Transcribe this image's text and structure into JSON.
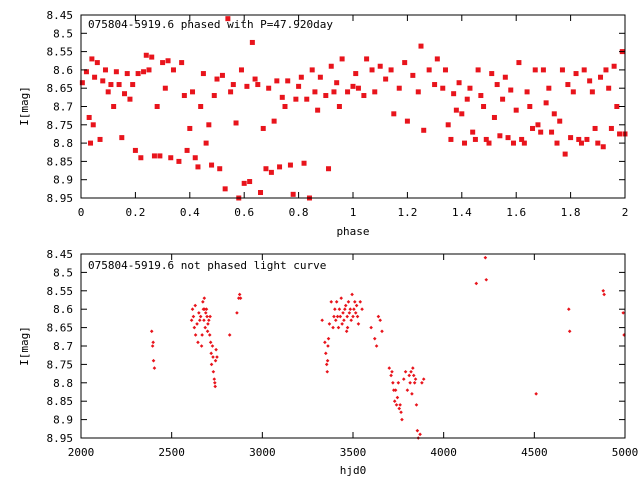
{
  "chart_data": [
    {
      "type": "scatter",
      "title": "075804-5919.6 phased with P=47.920day",
      "xlabel": "phase",
      "ylabel": "I[mag]",
      "xlim": [
        0,
        2
      ],
      "ylim": [
        8.45,
        8.95
      ],
      "y_inverted": true,
      "xticks": [
        "0",
        "0.2",
        "0.4",
        "0.6",
        "0.8",
        "1",
        "1.2",
        "1.4",
        "1.6",
        "1.8",
        "2"
      ],
      "yticks": [
        "8.45",
        "8.5",
        "8.55",
        "8.6",
        "8.65",
        "8.7",
        "8.75",
        "8.8",
        "8.85",
        "8.9",
        "8.95"
      ],
      "marker_color": "#e8141c",
      "points": [
        [
          0.005,
          8.635
        ],
        [
          0.02,
          8.605
        ],
        [
          0.03,
          8.73
        ],
        [
          0.035,
          8.8
        ],
        [
          0.04,
          8.57
        ],
        [
          0.045,
          8.75
        ],
        [
          0.05,
          8.62
        ],
        [
          0.06,
          8.58
        ],
        [
          0.07,
          8.79
        ],
        [
          0.08,
          8.63
        ],
        [
          0.09,
          8.6
        ],
        [
          0.1,
          8.66
        ],
        [
          0.11,
          8.64
        ],
        [
          0.12,
          8.7
        ],
        [
          0.13,
          8.605
        ],
        [
          0.14,
          8.64
        ],
        [
          0.15,
          8.785
        ],
        [
          0.16,
          8.665
        ],
        [
          0.17,
          8.61
        ],
        [
          0.18,
          8.68
        ],
        [
          0.19,
          8.64
        ],
        [
          0.2,
          8.82
        ],
        [
          0.21,
          8.61
        ],
        [
          0.22,
          8.84
        ],
        [
          0.23,
          8.605
        ],
        [
          0.24,
          8.56
        ],
        [
          0.25,
          8.6
        ],
        [
          0.26,
          8.565
        ],
        [
          0.27,
          8.835
        ],
        [
          0.28,
          8.7
        ],
        [
          0.29,
          8.835
        ],
        [
          0.3,
          8.58
        ],
        [
          0.31,
          8.65
        ],
        [
          0.32,
          8.575
        ],
        [
          0.33,
          8.84
        ],
        [
          0.34,
          8.6
        ],
        [
          0.36,
          8.85
        ],
        [
          0.37,
          8.58
        ],
        [
          0.38,
          8.67
        ],
        [
          0.39,
          8.82
        ],
        [
          0.4,
          8.76
        ],
        [
          0.41,
          8.66
        ],
        [
          0.42,
          8.84
        ],
        [
          0.43,
          8.865
        ],
        [
          0.44,
          8.7
        ],
        [
          0.45,
          8.61
        ],
        [
          0.46,
          8.8
        ],
        [
          0.47,
          8.75
        ],
        [
          0.48,
          8.86
        ],
        [
          0.49,
          8.67
        ],
        [
          0.5,
          8.625
        ],
        [
          0.51,
          8.87
        ],
        [
          0.52,
          8.615
        ],
        [
          0.53,
          8.925
        ],
        [
          0.54,
          8.46
        ],
        [
          0.55,
          8.66
        ],
        [
          0.56,
          8.64
        ],
        [
          0.57,
          8.745
        ],
        [
          0.58,
          8.95
        ],
        [
          0.59,
          8.6
        ],
        [
          0.6,
          8.91
        ],
        [
          0.61,
          8.645
        ],
        [
          0.62,
          8.905
        ],
        [
          0.63,
          8.525
        ],
        [
          0.64,
          8.625
        ],
        [
          0.65,
          8.64
        ],
        [
          0.66,
          8.935
        ],
        [
          0.67,
          8.76
        ],
        [
          0.68,
          8.87
        ],
        [
          0.69,
          8.65
        ],
        [
          0.7,
          8.88
        ],
        [
          0.71,
          8.74
        ],
        [
          0.72,
          8.63
        ],
        [
          0.73,
          8.865
        ],
        [
          0.74,
          8.675
        ],
        [
          0.75,
          8.7
        ],
        [
          0.76,
          8.63
        ],
        [
          0.77,
          8.86
        ],
        [
          0.78,
          8.94
        ],
        [
          0.79,
          8.68
        ],
        [
          0.8,
          8.645
        ],
        [
          0.81,
          8.62
        ],
        [
          0.82,
          8.855
        ],
        [
          0.83,
          8.68
        ],
        [
          0.84,
          8.95
        ],
        [
          0.85,
          8.6
        ],
        [
          0.86,
          8.66
        ],
        [
          0.87,
          8.71
        ],
        [
          0.88,
          8.62
        ],
        [
          0.9,
          8.67
        ],
        [
          0.91,
          8.87
        ],
        [
          0.92,
          8.59
        ],
        [
          0.93,
          8.66
        ],
        [
          0.94,
          8.635
        ],
        [
          0.95,
          8.7
        ],
        [
          0.96,
          8.57
        ],
        [
          0.98,
          8.66
        ],
        [
          1.0,
          8.645
        ],
        [
          1.01,
          8.61
        ],
        [
          1.02,
          8.65
        ],
        [
          1.04,
          8.67
        ],
        [
          1.05,
          8.57
        ],
        [
          1.07,
          8.6
        ],
        [
          1.08,
          8.66
        ],
        [
          1.1,
          8.59
        ],
        [
          1.12,
          8.625
        ],
        [
          1.14,
          8.6
        ],
        [
          1.15,
          8.72
        ],
        [
          1.17,
          8.65
        ],
        [
          1.19,
          8.58
        ],
        [
          1.2,
          8.74
        ],
        [
          1.22,
          8.615
        ],
        [
          1.24,
          8.66
        ],
        [
          1.25,
          8.535
        ],
        [
          1.26,
          8.765
        ],
        [
          1.28,
          8.6
        ],
        [
          1.3,
          8.64
        ],
        [
          1.31,
          8.57
        ],
        [
          1.33,
          8.65
        ],
        [
          1.34,
          8.6
        ],
        [
          1.35,
          8.75
        ],
        [
          1.36,
          8.79
        ],
        [
          1.37,
          8.665
        ],
        [
          1.38,
          8.71
        ],
        [
          1.39,
          8.635
        ],
        [
          1.4,
          8.72
        ],
        [
          1.41,
          8.8
        ],
        [
          1.42,
          8.68
        ],
        [
          1.43,
          8.65
        ],
        [
          1.44,
          8.77
        ],
        [
          1.45,
          8.79
        ],
        [
          1.46,
          8.6
        ],
        [
          1.47,
          8.67
        ],
        [
          1.48,
          8.7
        ],
        [
          1.49,
          8.79
        ],
        [
          1.5,
          8.8
        ],
        [
          1.51,
          8.61
        ],
        [
          1.52,
          8.73
        ],
        [
          1.53,
          8.64
        ],
        [
          1.54,
          8.78
        ],
        [
          1.55,
          8.68
        ],
        [
          1.56,
          8.62
        ],
        [
          1.57,
          8.785
        ],
        [
          1.58,
          8.655
        ],
        [
          1.59,
          8.8
        ],
        [
          1.6,
          8.71
        ],
        [
          1.61,
          8.58
        ],
        [
          1.62,
          8.79
        ],
        [
          1.63,
          8.8
        ],
        [
          1.64,
          8.66
        ],
        [
          1.65,
          8.7
        ],
        [
          1.66,
          8.76
        ],
        [
          1.67,
          8.6
        ],
        [
          1.68,
          8.75
        ],
        [
          1.69,
          8.77
        ],
        [
          1.7,
          8.6
        ],
        [
          1.71,
          8.69
        ],
        [
          1.72,
          8.65
        ],
        [
          1.73,
          8.77
        ],
        [
          1.74,
          8.72
        ],
        [
          1.75,
          8.8
        ],
        [
          1.76,
          8.74
        ],
        [
          1.77,
          8.6
        ],
        [
          1.78,
          8.83
        ],
        [
          1.79,
          8.64
        ],
        [
          1.8,
          8.785
        ],
        [
          1.81,
          8.66
        ],
        [
          1.82,
          8.61
        ],
        [
          1.83,
          8.79
        ],
        [
          1.84,
          8.8
        ],
        [
          1.85,
          8.6
        ],
        [
          1.86,
          8.79
        ],
        [
          1.87,
          8.63
        ],
        [
          1.88,
          8.66
        ],
        [
          1.89,
          8.76
        ],
        [
          1.9,
          8.8
        ],
        [
          1.91,
          8.62
        ],
        [
          1.92,
          8.81
        ],
        [
          1.93,
          8.6
        ],
        [
          1.94,
          8.65
        ],
        [
          1.95,
          8.76
        ],
        [
          1.96,
          8.59
        ],
        [
          1.97,
          8.7
        ],
        [
          1.98,
          8.775
        ],
        [
          1.99,
          8.55
        ],
        [
          2.0,
          8.775
        ]
      ]
    },
    {
      "type": "scatter",
      "title": "075804-5919.6 not phased light curve",
      "xlabel": "hjd0",
      "ylabel": "I[mag]",
      "xlim": [
        2000,
        5000
      ],
      "ylim": [
        8.45,
        8.95
      ],
      "y_inverted": true,
      "xticks": [
        "2000",
        "2500",
        "3000",
        "3500",
        "4000",
        "4500",
        "5000"
      ],
      "yticks": [
        "8.45",
        "8.5",
        "8.55",
        "8.6",
        "8.65",
        "8.7",
        "8.75",
        "8.8",
        "8.85",
        "8.9",
        "8.95"
      ],
      "marker_color": "#e8141c",
      "points": [
        [
          2390,
          8.66
        ],
        [
          2395,
          8.7
        ],
        [
          2398,
          8.69
        ],
        [
          2400,
          8.74
        ],
        [
          2405,
          8.76
        ],
        [
          2610,
          8.63
        ],
        [
          2615,
          8.6
        ],
        [
          2620,
          8.62
        ],
        [
          2625,
          8.65
        ],
        [
          2630,
          8.59
        ],
        [
          2632,
          8.67
        ],
        [
          2640,
          8.64
        ],
        [
          2645,
          8.69
        ],
        [
          2650,
          8.61
        ],
        [
          2655,
          8.63
        ],
        [
          2660,
          8.62
        ],
        [
          2665,
          8.7
        ],
        [
          2668,
          8.67
        ],
        [
          2672,
          8.58
        ],
        [
          2675,
          8.6
        ],
        [
          2678,
          8.63
        ],
        [
          2680,
          8.57
        ],
        [
          2682,
          8.6
        ],
        [
          2685,
          8.65
        ],
        [
          2688,
          8.61
        ],
        [
          2692,
          8.6
        ],
        [
          2695,
          8.62
        ],
        [
          2698,
          8.66
        ],
        [
          2700,
          8.64
        ],
        [
          2705,
          8.63
        ],
        [
          2710,
          8.67
        ],
        [
          2712,
          8.62
        ],
        [
          2715,
          8.69
        ],
        [
          2718,
          8.72
        ],
        [
          2720,
          8.75
        ],
        [
          2725,
          8.7
        ],
        [
          2728,
          8.73
        ],
        [
          2730,
          8.77
        ],
        [
          2735,
          8.79
        ],
        [
          2738,
          8.8
        ],
        [
          2740,
          8.81
        ],
        [
          2742,
          8.74
        ],
        [
          2745,
          8.71
        ],
        [
          2750,
          8.73
        ],
        [
          2820,
          8.67
        ],
        [
          2860,
          8.61
        ],
        [
          2870,
          8.57
        ],
        [
          2875,
          8.56
        ],
        [
          2880,
          8.57
        ],
        [
          3330,
          8.63
        ],
        [
          3345,
          8.69
        ],
        [
          3350,
          8.72
        ],
        [
          3355,
          8.75
        ],
        [
          3358,
          8.77
        ],
        [
          3360,
          8.74
        ],
        [
          3362,
          8.7
        ],
        [
          3365,
          8.68
        ],
        [
          3370,
          8.64
        ],
        [
          3380,
          8.58
        ],
        [
          3390,
          8.65
        ],
        [
          3395,
          8.62
        ],
        [
          3400,
          8.6
        ],
        [
          3405,
          8.63
        ],
        [
          3410,
          8.58
        ],
        [
          3415,
          8.62
        ],
        [
          3420,
          8.65
        ],
        [
          3425,
          8.6
        ],
        [
          3430,
          8.62
        ],
        [
          3435,
          8.57
        ],
        [
          3440,
          8.64
        ],
        [
          3445,
          8.61
        ],
        [
          3450,
          8.63
        ],
        [
          3455,
          8.6
        ],
        [
          3460,
          8.59
        ],
        [
          3465,
          8.66
        ],
        [
          3468,
          8.62
        ],
        [
          3470,
          8.65
        ],
        [
          3475,
          8.58
        ],
        [
          3480,
          8.61
        ],
        [
          3485,
          8.6
        ],
        [
          3490,
          8.63
        ],
        [
          3495,
          8.56
        ],
        [
          3500,
          8.62
        ],
        [
          3505,
          8.6
        ],
        [
          3510,
          8.58
        ],
        [
          3515,
          8.61
        ],
        [
          3520,
          8.59
        ],
        [
          3525,
          8.62
        ],
        [
          3530,
          8.64
        ],
        [
          3540,
          8.58
        ],
        [
          3550,
          8.6
        ],
        [
          3600,
          8.65
        ],
        [
          3620,
          8.68
        ],
        [
          3630,
          8.7
        ],
        [
          3640,
          8.62
        ],
        [
          3650,
          8.63
        ],
        [
          3660,
          8.66
        ],
        [
          3700,
          8.76
        ],
        [
          3710,
          8.78
        ],
        [
          3715,
          8.77
        ],
        [
          3720,
          8.8
        ],
        [
          3725,
          8.82
        ],
        [
          3730,
          8.85
        ],
        [
          3735,
          8.82
        ],
        [
          3740,
          8.86
        ],
        [
          3745,
          8.84
        ],
        [
          3750,
          8.8
        ],
        [
          3755,
          8.87
        ],
        [
          3760,
          8.86
        ],
        [
          3765,
          8.88
        ],
        [
          3770,
          8.9
        ],
        [
          3780,
          8.79
        ],
        [
          3790,
          8.77
        ],
        [
          3800,
          8.82
        ],
        [
          3810,
          8.78
        ],
        [
          3815,
          8.8
        ],
        [
          3820,
          8.77
        ],
        [
          3825,
          8.83
        ],
        [
          3830,
          8.76
        ],
        [
          3835,
          8.78
        ],
        [
          3840,
          8.8
        ],
        [
          3845,
          8.79
        ],
        [
          3850,
          8.86
        ],
        [
          3855,
          8.93
        ],
        [
          3860,
          8.95
        ],
        [
          3870,
          8.94
        ],
        [
          3880,
          8.8
        ],
        [
          3890,
          8.79
        ],
        [
          4180,
          8.53
        ],
        [
          4230,
          8.46
        ],
        [
          4235,
          8.52
        ],
        [
          4510,
          8.83
        ],
        [
          4690,
          8.6
        ],
        [
          4695,
          8.66
        ],
        [
          4880,
          8.55
        ],
        [
          4885,
          8.56
        ],
        [
          4990,
          8.61
        ],
        [
          4995,
          8.67
        ]
      ]
    }
  ]
}
